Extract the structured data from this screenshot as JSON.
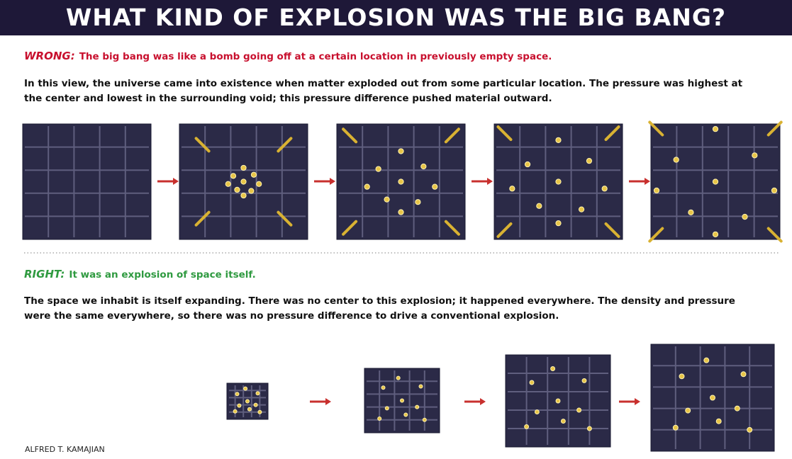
{
  "header": {
    "title": "WHAT KIND OF EXPLOSION WAS THE BIG BANG?"
  },
  "wrong": {
    "label": "WRONG:",
    "headline": "The big bang was like a bomb going off at a certain location in previously empty space.",
    "description": "In this view, the universe came into existence when matter exploded out from some particular location. The pressure was highest at the center and lowest in the surrounding void; this pressure difference pushed material outward."
  },
  "right": {
    "label": "RIGHT:",
    "headline": "It was an explosion of space itself.",
    "description": "The space we inhabit is itself expanding. There was no center to this explosion; it happened everywhere. The density and pressure were the same everywhere, so there was no pressure difference to drive a conventional explosion."
  },
  "credit": "ALFRED T. KAMAJIAN"
}
